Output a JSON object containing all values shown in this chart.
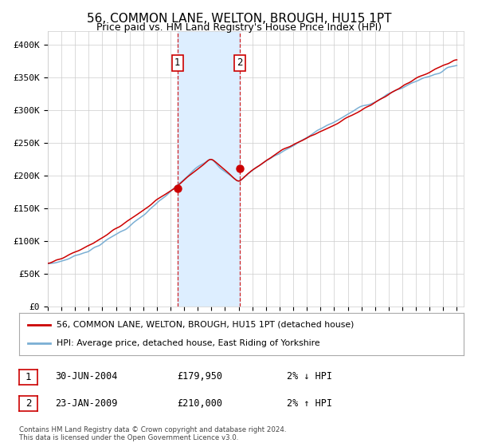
{
  "title": "56, COMMON LANE, WELTON, BROUGH, HU15 1PT",
  "subtitle": "Price paid vs. HM Land Registry's House Price Index (HPI)",
  "ylim": [
    0,
    420000
  ],
  "yticks": [
    0,
    50000,
    100000,
    150000,
    200000,
    250000,
    300000,
    350000,
    400000
  ],
  "ytick_labels": [
    "£0",
    "£50K",
    "£100K",
    "£150K",
    "£200K",
    "£250K",
    "£300K",
    "£350K",
    "£400K"
  ],
  "sale1_year": 2004.5,
  "sale1_price": 179950,
  "sale2_year": 2009.07,
  "sale2_price": 210000,
  "hpi_color": "#7bafd4",
  "price_color": "#cc0000",
  "shading_color": "#ddeeff",
  "dot_color": "#cc0000",
  "grid_color": "#cccccc",
  "bg_color": "#ffffff",
  "legend_label1": "56, COMMON LANE, WELTON, BROUGH, HU15 1PT (detached house)",
  "legend_label2": "HPI: Average price, detached house, East Riding of Yorkshire",
  "note1_num": "1",
  "note1_date": "30-JUN-2004",
  "note1_price": "£179,950",
  "note1_hpi": "2% ↓ HPI",
  "note2_num": "2",
  "note2_date": "23-JAN-2009",
  "note2_price": "£210,000",
  "note2_hpi": "2% ↑ HPI",
  "footer": "Contains HM Land Registry data © Crown copyright and database right 2024.\nThis data is licensed under the Open Government Licence v3.0."
}
